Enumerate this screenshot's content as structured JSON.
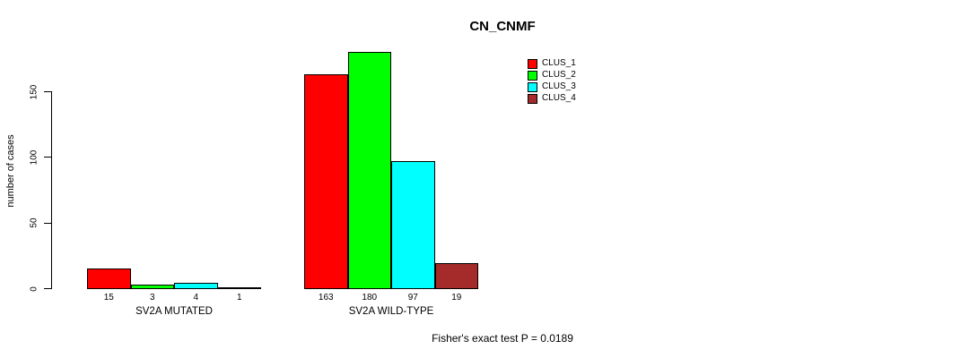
{
  "page": {
    "background": "#ffffff"
  },
  "chart_data": {
    "type": "bar",
    "title": "CN_CNMF",
    "ylabel": "number of cases",
    "xlabel": "",
    "yticks": [
      0,
      50,
      100,
      150
    ],
    "ylim": [
      0,
      184
    ],
    "grid": false,
    "legend_position": "top-right",
    "categories": [
      "SV2A MUTATED",
      "SV2A WILD-TYPE"
    ],
    "series": [
      {
        "name": "CLUS_1",
        "color": "#ff0000",
        "values": [
          15,
          163
        ]
      },
      {
        "name": "CLUS_2",
        "color": "#00ff00",
        "values": [
          3,
          180
        ]
      },
      {
        "name": "CLUS_3",
        "color": "#00ffff",
        "values": [
          4,
          97
        ]
      },
      {
        "name": "CLUS_4",
        "color": "#a52a2a",
        "values": [
          1,
          19
        ]
      }
    ],
    "bar_value_labels": [
      [
        "15",
        "3",
        "4",
        "1"
      ],
      [
        "163",
        "180",
        "97",
        "19"
      ]
    ],
    "annotation": "Fisher's exact test P = 0.0189"
  }
}
